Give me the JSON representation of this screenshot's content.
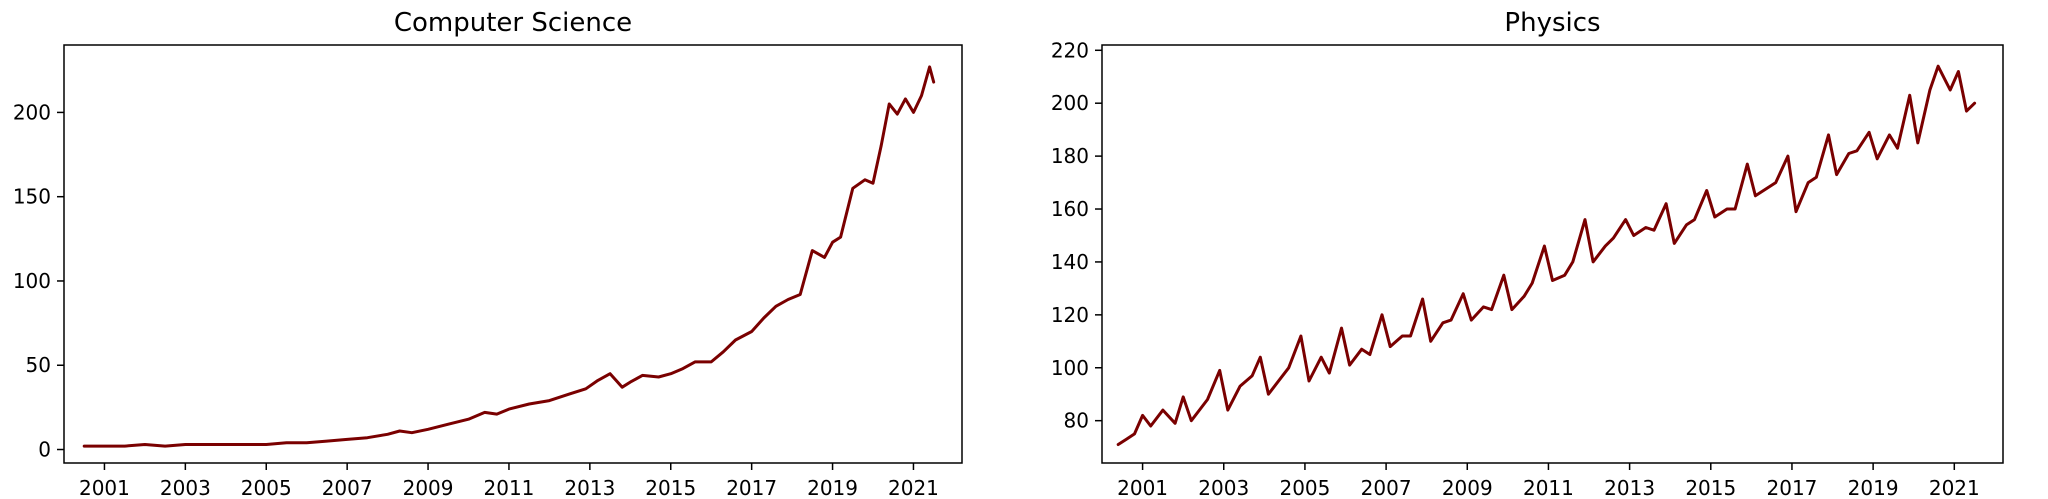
{
  "chart_data": [
    {
      "type": "line",
      "title": "Computer Science",
      "xlabel": "",
      "ylabel": "",
      "xlim": [
        2000.0,
        2022.2
      ],
      "ylim": [
        -8,
        240
      ],
      "xticks": [
        "2001",
        "2003",
        "2005",
        "2007",
        "2009",
        "2011",
        "2013",
        "2015",
        "2017",
        "2019",
        "2021"
      ],
      "yticks": [
        "0",
        "50",
        "100",
        "150",
        "200"
      ],
      "grid": false,
      "line_color": "#7a0000",
      "series": [
        {
          "x": [
            2000.5,
            2001.0,
            2001.5,
            2002.0,
            2002.5,
            2003.0,
            2003.5,
            2004.0,
            2004.5,
            2005.0,
            2005.5,
            2006.0,
            2006.5,
            2007.0,
            2007.5,
            2008.0,
            2008.3,
            2008.6,
            2009.0,
            2009.5,
            2010.0,
            2010.4,
            2010.7,
            2011.0,
            2011.5,
            2012.0,
            2012.5,
            2012.9,
            2013.2,
            2013.5,
            2013.8,
            2014.0,
            2014.3,
            2014.7,
            2015.0,
            2015.3,
            2015.6,
            2016.0,
            2016.3,
            2016.6,
            2017.0,
            2017.3,
            2017.6,
            2017.9,
            2018.2,
            2018.5,
            2018.8,
            2019.0,
            2019.2,
            2019.5,
            2019.8,
            2020.0,
            2020.2,
            2020.4,
            2020.6,
            2020.8,
            2021.0,
            2021.2,
            2021.4,
            2021.5
          ],
          "y": [
            2,
            2,
            2,
            3,
            2,
            3,
            3,
            3,
            3,
            3,
            4,
            4,
            5,
            6,
            7,
            9,
            11,
            10,
            12,
            15,
            18,
            22,
            21,
            24,
            27,
            29,
            33,
            36,
            41,
            45,
            37,
            40,
            44,
            43,
            45,
            48,
            52,
            52,
            58,
            65,
            70,
            78,
            85,
            89,
            92,
            118,
            114,
            123,
            126,
            155,
            160,
            158,
            180,
            205,
            199,
            208,
            200,
            210,
            227,
            218
          ]
        }
      ]
    },
    {
      "type": "line",
      "title": "Physics",
      "xlabel": "",
      "ylabel": "",
      "xlim": [
        2000.0,
        2022.2
      ],
      "ylim": [
        64,
        222
      ],
      "xticks": [
        "2001",
        "2003",
        "2005",
        "2007",
        "2009",
        "2011",
        "2013",
        "2015",
        "2017",
        "2019",
        "2021"
      ],
      "yticks": [
        "80",
        "100",
        "120",
        "140",
        "160",
        "180",
        "200",
        "220"
      ],
      "grid": false,
      "line_color": "#7a0000",
      "series": [
        {
          "x": [
            2000.4,
            2000.6,
            2000.8,
            2001.0,
            2001.2,
            2001.5,
            2001.8,
            2002.0,
            2002.2,
            2002.4,
            2002.6,
            2002.9,
            2003.1,
            2003.4,
            2003.7,
            2003.9,
            2004.1,
            2004.4,
            2004.6,
            2004.9,
            2005.1,
            2005.4,
            2005.6,
            2005.9,
            2006.1,
            2006.4,
            2006.6,
            2006.9,
            2007.1,
            2007.4,
            2007.6,
            2007.9,
            2008.1,
            2008.4,
            2008.6,
            2008.9,
            2009.1,
            2009.4,
            2009.6,
            2009.9,
            2010.1,
            2010.4,
            2010.6,
            2010.9,
            2011.1,
            2011.4,
            2011.6,
            2011.9,
            2012.1,
            2012.4,
            2012.6,
            2012.9,
            2013.1,
            2013.4,
            2013.6,
            2013.9,
            2014.1,
            2014.4,
            2014.6,
            2014.9,
            2015.1,
            2015.4,
            2015.6,
            2015.9,
            2016.1,
            2016.4,
            2016.6,
            2016.9,
            2017.1,
            2017.4,
            2017.6,
            2017.9,
            2018.1,
            2018.4,
            2018.6,
            2018.9,
            2019.1,
            2019.4,
            2019.6,
            2019.9,
            2020.1,
            2020.4,
            2020.6,
            2020.9,
            2021.1,
            2021.3,
            2021.5
          ],
          "y": [
            71,
            73,
            75,
            82,
            78,
            84,
            79,
            89,
            80,
            84,
            88,
            99,
            84,
            93,
            97,
            104,
            90,
            96,
            100,
            112,
            95,
            104,
            98,
            115,
            101,
            107,
            105,
            120,
            108,
            112,
            112,
            126,
            110,
            117,
            118,
            128,
            118,
            123,
            122,
            135,
            122,
            127,
            132,
            146,
            133,
            135,
            140,
            156,
            140,
            146,
            149,
            156,
            150,
            153,
            152,
            162,
            147,
            154,
            156,
            167,
            157,
            160,
            160,
            177,
            165,
            168,
            170,
            180,
            159,
            170,
            172,
            188,
            173,
            181,
            182,
            189,
            179,
            188,
            183,
            203,
            185,
            205,
            214,
            205,
            212,
            197,
            200
          ]
        }
      ]
    }
  ]
}
